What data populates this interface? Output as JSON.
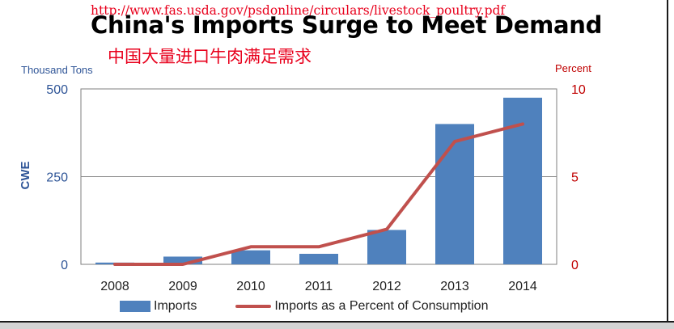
{
  "header": {
    "source_url": "http://www.fas.usda.gov/psdonline/circulars/livestock_poultry.pdf",
    "title": "China's Imports Surge to Meet Demand",
    "subtitle_cn": "中国大量进口牛肉满足需求"
  },
  "colors": {
    "bars": "#4f81bd",
    "line": "#c0504d",
    "left_axis": "#2f5597",
    "right_axis": "#c00000",
    "annotation_red": "#e8001c"
  },
  "chart_data": {
    "type": "bar",
    "categories": [
      "2008",
      "2009",
      "2010",
      "2011",
      "2012",
      "2013",
      "2014"
    ],
    "series": [
      {
        "name": "Imports",
        "type": "bar",
        "axis": "left",
        "values": [
          5,
          22,
          40,
          30,
          98,
          400,
          475
        ]
      },
      {
        "name": "Imports as a Percent of Consumption",
        "type": "line",
        "axis": "right",
        "values": [
          0,
          0,
          1,
          1,
          2,
          7,
          8
        ]
      }
    ],
    "y_left": {
      "label": "CWE",
      "unit_label": "Thousand Tons",
      "ylim": [
        0,
        500
      ],
      "ticks": [
        "0",
        "250",
        "500"
      ]
    },
    "y_right": {
      "unit_label": "Percent",
      "ylim": [
        0,
        10
      ],
      "ticks": [
        "0",
        "5",
        "10"
      ]
    },
    "grid": true,
    "legend_position": "bottom"
  }
}
